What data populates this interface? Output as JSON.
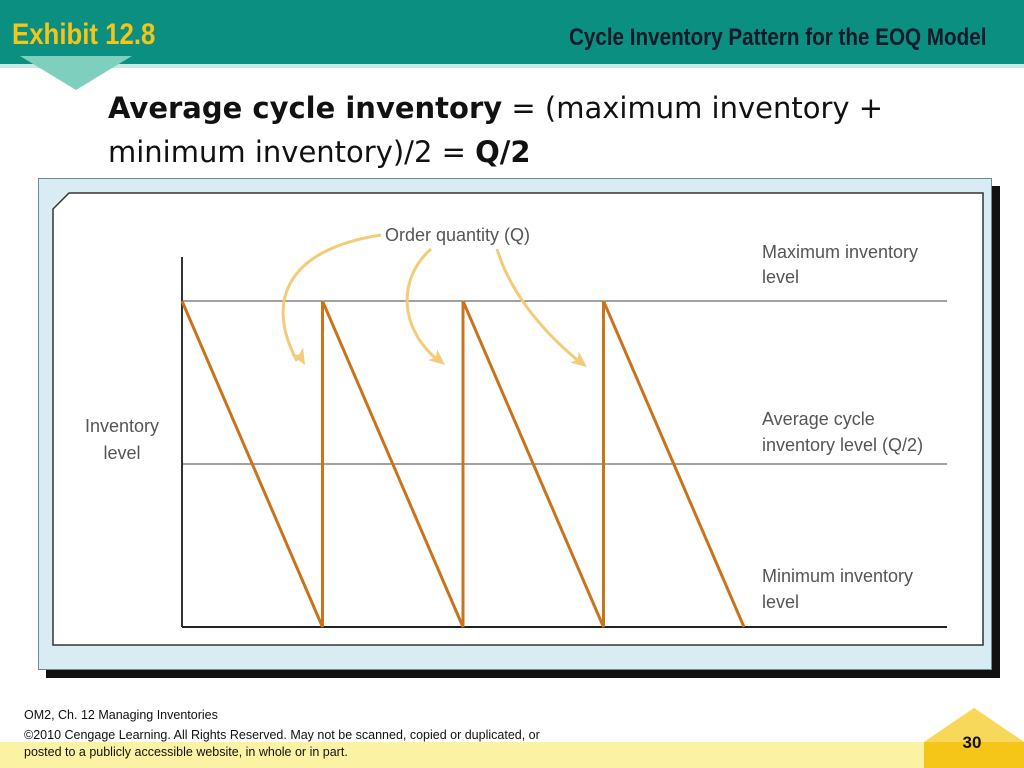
{
  "header": {
    "exhibit": "Exhibit 12.8",
    "title": "Cycle Inventory Pattern for the EOQ Model",
    "band_color": "#0a8f80",
    "exhibit_color": "#f5c518"
  },
  "formula": {
    "lhs": "Average cycle inventory",
    "middle": " = (maximum inventory + minimum inventory)/2 = ",
    "rhs": "Q/2"
  },
  "chart_data": {
    "type": "line",
    "title": "",
    "xlabel": "",
    "ylabel": "Inventory level",
    "ylabel_lines": [
      "Inventory",
      "level"
    ],
    "ylim": [
      0,
      1
    ],
    "xlim": [
      0,
      4
    ],
    "grid": false,
    "series": [
      {
        "color": "#c9731f",
        "x": [
          0,
          1,
          1,
          2,
          2,
          3,
          3,
          4
        ],
        "y": [
          1,
          0,
          1,
          0,
          1,
          0,
          1,
          0
        ]
      }
    ],
    "reference_lines": [
      {
        "y": 1,
        "label": "Maximum inventory level",
        "label_lines": [
          "Maximum inventory",
          "level"
        ]
      },
      {
        "y": 0.5,
        "label": "Average cycle inventory level (Q/2)",
        "label_lines": [
          "Average cycle",
          "inventory level (Q/2)"
        ]
      },
      {
        "y": 0,
        "label": "Minimum inventory level",
        "label_lines": [
          "Minimum inventory",
          "level"
        ]
      }
    ],
    "annotation": {
      "text": "Order quantity (Q)",
      "arrow_color": "#f2cc78",
      "targets": [
        1,
        2,
        3
      ]
    }
  },
  "footer": {
    "course": "OM2, Ch. 12 Managing Inventories",
    "copyright_line1": "©2010 Cengage Learning. All Rights Reserved.  May not be scanned, copied or duplicated, or",
    "copyright_line2": "posted to a publicly accessible website, in whole or in part.",
    "page_number": "30",
    "band_color": "#fbf3a3"
  }
}
